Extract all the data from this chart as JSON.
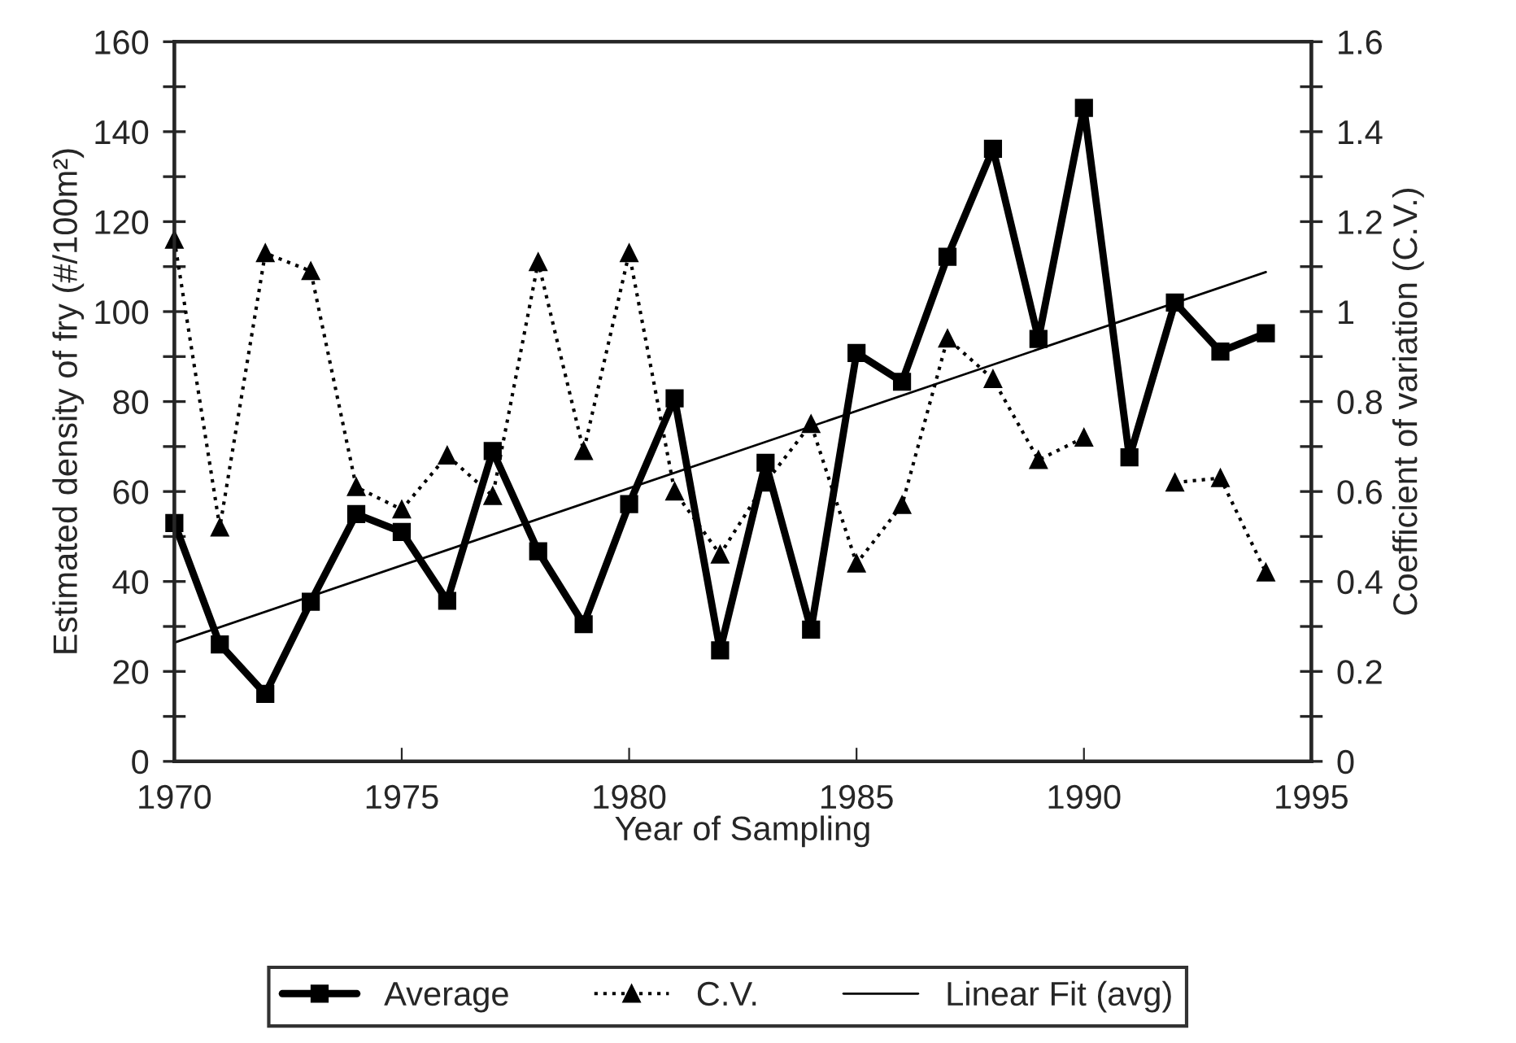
{
  "chart_data": {
    "type": "line",
    "xlabel": "Year of Sampling",
    "ylabel": "Estimated density of fry (#/100m²)",
    "y2label": "Coefficient of variation (C.V.)",
    "x": [
      1970,
      1971,
      1972,
      1973,
      1974,
      1975,
      1976,
      1977,
      1978,
      1979,
      1980,
      1981,
      1982,
      1983,
      1984,
      1985,
      1986,
      1987,
      1988,
      1989,
      1990,
      1991,
      1992,
      1993,
      1994
    ],
    "series": [
      {
        "name": "Average",
        "color": "#000000",
        "marker": "square",
        "line_style": "solid",
        "values": [
          53,
          26,
          15,
          35.5,
          55,
          51,
          35.7,
          69,
          46.7,
          30.5,
          57.2,
          80.7,
          24.7,
          66.4,
          29.3,
          90.8,
          84.4,
          112.2,
          136.2,
          93.9,
          145.3,
          67.6,
          102,
          91.1,
          95.2
        ]
      },
      {
        "name": "C.V.",
        "color": "#000000",
        "marker": "triangle",
        "line_style": "dotted",
        "axis": "y2",
        "values": [
          1.16,
          0.52,
          1.13,
          1.09,
          0.61,
          0.56,
          0.68,
          0.59,
          1.11,
          0.69,
          1.13,
          0.6,
          0.46,
          0.62,
          0.75,
          0.44,
          0.57,
          0.94,
          0.85,
          0.67,
          0.72,
          null,
          0.62,
          0.63,
          0.42
        ]
      },
      {
        "name": "Linear Fit (avg)",
        "color": "#000000",
        "marker": "none",
        "line_style": "solid",
        "x": [
          1970,
          1994
        ],
        "values": [
          26.4,
          108.8
        ]
      }
    ],
    "xlim": [
      1970,
      1995
    ],
    "xticks": [
      1970,
      1975,
      1980,
      1985,
      1990,
      1995
    ],
    "ylim": [
      0,
      160
    ],
    "yticks": [
      0,
      {
        "value": 10,
        "label": null
      },
      20,
      {
        "value": 30,
        "label": null
      },
      40,
      {
        "value": 50,
        "label": null
      },
      60,
      {
        "value": 70,
        "label": null
      },
      80,
      {
        "value": 90,
        "label": null
      },
      100,
      {
        "value": 110,
        "label": null
      },
      120,
      {
        "value": 130,
        "label": null
      },
      140,
      {
        "value": 150,
        "label": null
      },
      160
    ],
    "y2lim": [
      0,
      1.6
    ],
    "y2ticks": [
      0,
      {
        "value": 0.1,
        "label": null
      },
      0.2,
      {
        "value": 0.3,
        "label": null
      },
      0.4,
      {
        "value": 0.5,
        "label": null
      },
      0.6,
      {
        "value": 0.7,
        "label": null
      },
      0.8,
      {
        "value": 0.9,
        "label": null
      },
      1,
      {
        "value": 1.1,
        "label": null
      },
      1.2,
      {
        "value": 1.3,
        "label": null
      },
      1.4,
      {
        "value": 1.5,
        "label": null
      },
      1.6
    ],
    "grid": false,
    "legend": "bottom"
  }
}
